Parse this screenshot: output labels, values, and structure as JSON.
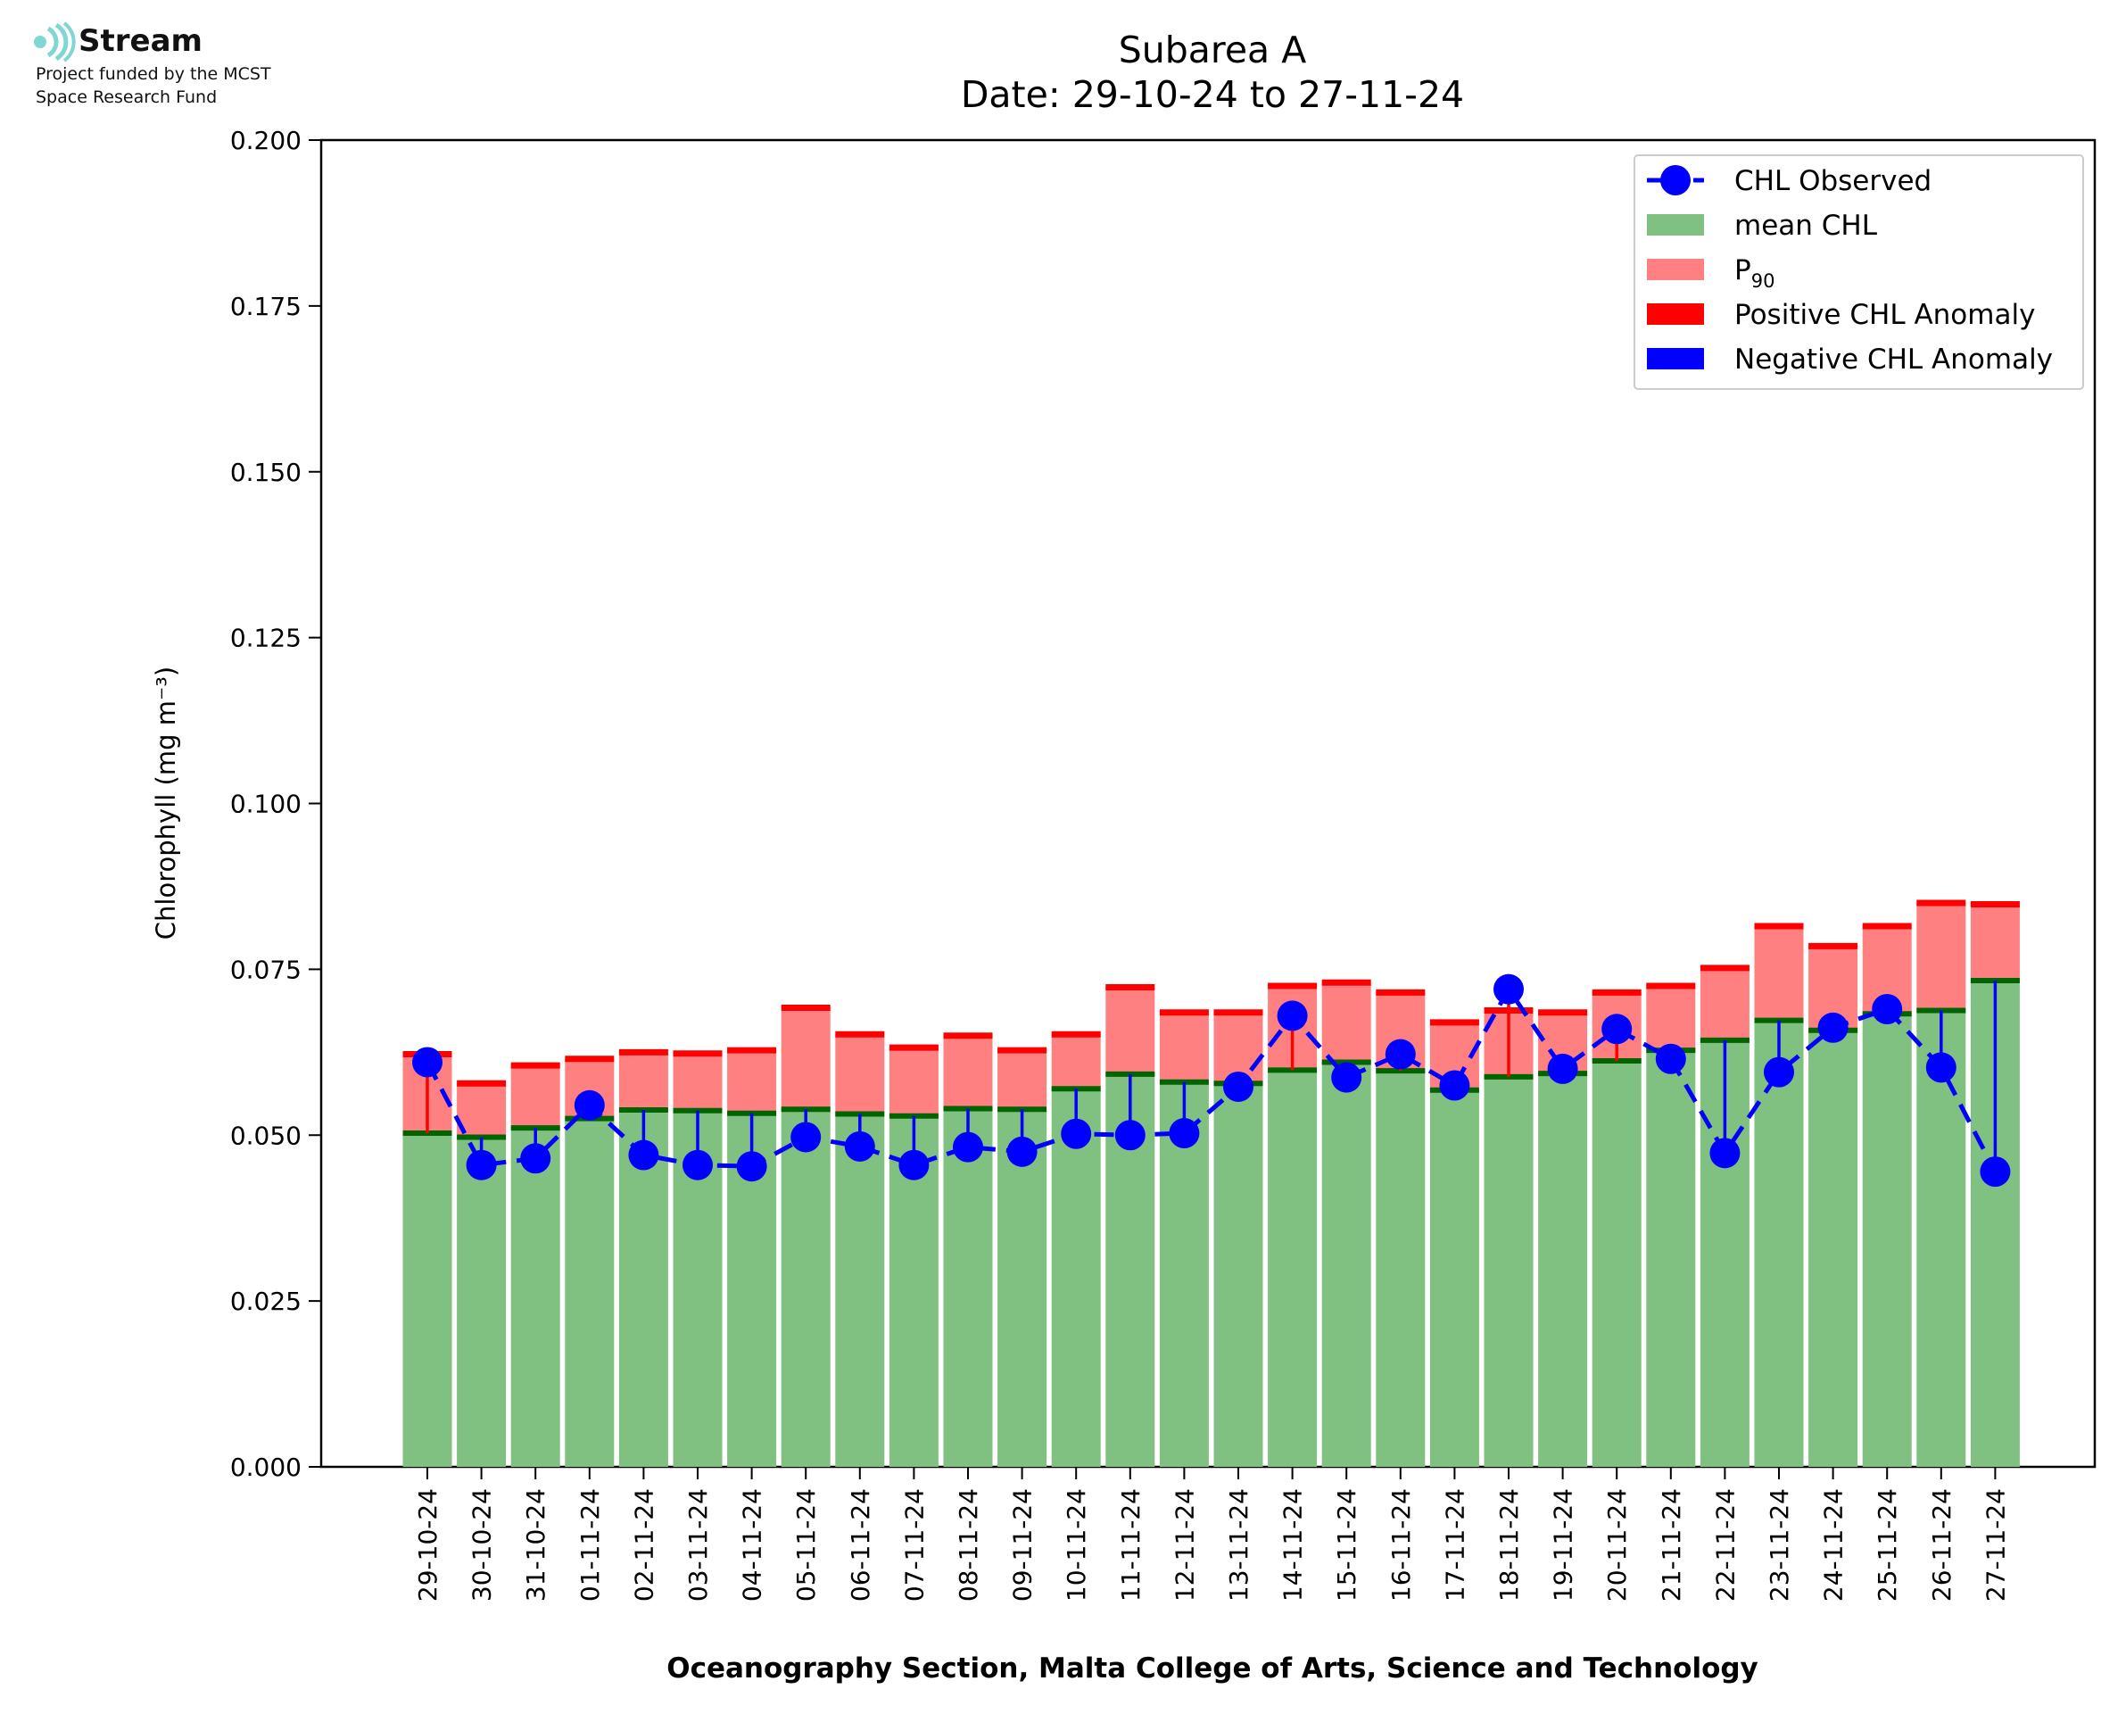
{
  "logo": {
    "name": "Stream",
    "line1": "Project funded by the MCST",
    "line2": "Space Research Fund",
    "color": "#7fd6d3"
  },
  "chart_data": {
    "type": "bar",
    "title": "Subarea A",
    "subtitle": "Date: 29-10-24 to 27-11-24",
    "xlabel": "Oceanography Section, Malta College of Arts, Science and Technology",
    "ylabel": "Chlorophyll (mg m⁻³)",
    "ylim": [
      0,
      0.2
    ],
    "yticks": [
      "0.000",
      "0.025",
      "0.050",
      "0.075",
      "0.100",
      "0.125",
      "0.150",
      "0.175",
      "0.200"
    ],
    "categories": [
      "29-10-24",
      "30-10-24",
      "31-10-24",
      "01-11-24",
      "02-11-24",
      "03-11-24",
      "04-11-24",
      "05-11-24",
      "06-11-24",
      "07-11-24",
      "08-11-24",
      "09-11-24",
      "10-11-24",
      "11-11-24",
      "12-11-24",
      "13-11-24",
      "14-11-24",
      "15-11-24",
      "16-11-24",
      "17-11-24",
      "18-11-24",
      "19-11-24",
      "20-11-24",
      "21-11-24",
      "22-11-24",
      "23-11-24",
      "24-11-24",
      "25-11-24",
      "26-11-24",
      "27-11-24"
    ],
    "series": [
      {
        "name": "CHL Observed",
        "type": "line",
        "color": "#0000ff",
        "values": [
          0.061,
          0.0455,
          0.0465,
          0.0545,
          0.047,
          0.0455,
          0.0453,
          0.0497,
          0.0483,
          0.0455,
          0.0482,
          0.0475,
          0.0502,
          0.05,
          0.0503,
          0.0573,
          0.068,
          0.0587,
          0.0622,
          0.0575,
          0.072,
          0.06,
          0.066,
          0.0615,
          0.0473,
          0.0595,
          0.0662,
          0.069,
          0.0602,
          0.0445
        ]
      },
      {
        "name": "mean CHL",
        "type": "bar",
        "color": "#80c080",
        "values": [
          0.0503,
          0.0497,
          0.0511,
          0.0525,
          0.0538,
          0.0537,
          0.0533,
          0.0539,
          0.0532,
          0.0529,
          0.054,
          0.0539,
          0.057,
          0.0592,
          0.058,
          0.0578,
          0.0598,
          0.061,
          0.0597,
          0.0568,
          0.0588,
          0.0593,
          0.0612,
          0.0628,
          0.0643,
          0.0673,
          0.0658,
          0.0683,
          0.0688,
          0.0733
        ]
      },
      {
        "name": "P₉₀",
        "type": "bar",
        "color": "#ff8080",
        "values": [
          0.0622,
          0.0578,
          0.0605,
          0.0615,
          0.0625,
          0.0623,
          0.0628,
          0.0692,
          0.0652,
          0.0632,
          0.065,
          0.0628,
          0.0652,
          0.0723,
          0.0685,
          0.0685,
          0.0725,
          0.073,
          0.0715,
          0.067,
          0.0688,
          0.0685,
          0.0715,
          0.0725,
          0.0752,
          0.0815,
          0.0785,
          0.0815,
          0.085,
          0.0848
        ]
      }
    ],
    "legend": {
      "position": "top-right",
      "items": [
        {
          "label": "CHL Observed",
          "kind": "line-marker",
          "color": "#0000ff"
        },
        {
          "label": "mean CHL",
          "kind": "patch",
          "color": "#80c080"
        },
        {
          "label": "P",
          "sub": "90",
          "kind": "patch",
          "color": "#ff8080"
        },
        {
          "label": "Positive CHL Anomaly",
          "kind": "patch",
          "color": "#ff0000"
        },
        {
          "label": "Negative CHL Anomaly",
          "kind": "patch",
          "color": "#0000ff"
        }
      ]
    },
    "colors": {
      "mean_line": "#006400",
      "p90_line": "#ff0000",
      "pos_anomaly": "#ff0000",
      "neg_anomaly": "#0000ff"
    }
  }
}
